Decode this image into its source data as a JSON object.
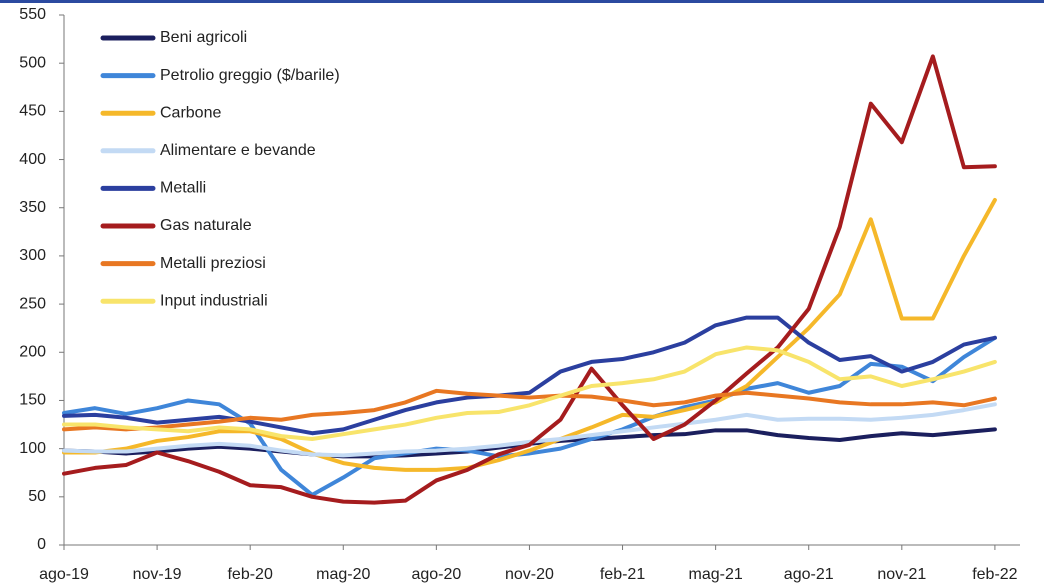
{
  "chart_data": {
    "type": "line",
    "categories": [
      "ago-19",
      null,
      null,
      "nov-19",
      null,
      null,
      "feb-20",
      null,
      null,
      "mag-20",
      null,
      null,
      "ago-20",
      null,
      null,
      "nov-20",
      null,
      null,
      "feb-21",
      null,
      null,
      "mag-21",
      null,
      null,
      "ago-21",
      null,
      null,
      "nov-21",
      null,
      null,
      "feb-22"
    ],
    "series": [
      {
        "name": "Beni agricoli",
        "color": "#1b1f5e",
        "values": [
          98,
          97,
          95,
          97,
          100,
          102,
          100,
          97,
          94,
          92,
          92,
          93,
          95,
          97,
          101,
          105,
          108,
          110,
          112,
          114,
          115,
          119,
          119,
          114,
          111,
          109,
          113,
          116,
          114,
          117,
          120
        ]
      },
      {
        "name": "Petrolio greggio ($/barile)",
        "color": "#3f86d9",
        "values": [
          137,
          142,
          136,
          142,
          150,
          146,
          126,
          78,
          52,
          70,
          90,
          95,
          100,
          98,
          92,
          95,
          100,
          110,
          120,
          133,
          143,
          150,
          162,
          168,
          158,
          165,
          188,
          185,
          170,
          195,
          215
        ]
      },
      {
        "name": "Carbone",
        "color": "#f5b82a",
        "values": [
          96,
          96,
          100,
          108,
          112,
          118,
          118,
          110,
          95,
          85,
          80,
          78,
          78,
          80,
          88,
          98,
          110,
          122,
          135,
          133,
          140,
          148,
          165,
          195,
          225,
          260,
          338,
          235,
          235,
          300,
          358
        ]
      },
      {
        "name": "Alimentare e bevande",
        "color": "#c3daf4",
        "values": [
          98,
          97,
          97,
          100,
          103,
          105,
          103,
          98,
          94,
          93,
          95,
          97,
          98,
          100,
          103,
          107,
          110,
          114,
          118,
          122,
          126,
          130,
          135,
          130,
          131,
          131,
          130,
          132,
          135,
          140,
          146
        ]
      },
      {
        "name": "Metalli",
        "color": "#2b3f9f",
        "values": [
          134,
          135,
          132,
          127,
          130,
          133,
          128,
          122,
          116,
          120,
          130,
          140,
          148,
          153,
          155,
          158,
          180,
          190,
          193,
          200,
          210,
          228,
          236,
          236,
          210,
          192,
          196,
          180,
          190,
          208,
          215
        ]
      },
      {
        "name": "Gas naturale",
        "color": "#a51c1e",
        "values": [
          74,
          80,
          83,
          96,
          87,
          76,
          62,
          60,
          50,
          45,
          44,
          46,
          67,
          78,
          94,
          104,
          130,
          183,
          145,
          110,
          125,
          150,
          178,
          205,
          245,
          330,
          458,
          418,
          507,
          392,
          393
        ]
      },
      {
        "name": "Metalli preziosi",
        "color": "#e87722",
        "values": [
          120,
          122,
          120,
          122,
          125,
          128,
          132,
          130,
          135,
          137,
          140,
          148,
          160,
          157,
          155,
          153,
          155,
          154,
          150,
          145,
          148,
          155,
          158,
          155,
          152,
          148,
          146,
          146,
          148,
          145,
          152
        ]
      },
      {
        "name": "Input industriali",
        "color": "#f8e46b",
        "values": [
          125,
          125,
          122,
          120,
          118,
          122,
          120,
          113,
          110,
          115,
          120,
          125,
          132,
          137,
          138,
          145,
          155,
          165,
          168,
          172,
          180,
          198,
          205,
          202,
          190,
          172,
          175,
          165,
          172,
          180,
          190
        ]
      }
    ],
    "ylim": [
      0,
      550
    ],
    "yticks": [
      0,
      50,
      100,
      150,
      200,
      250,
      300,
      350,
      400,
      450,
      500,
      550
    ],
    "grid": false,
    "legend": "top-left"
  }
}
